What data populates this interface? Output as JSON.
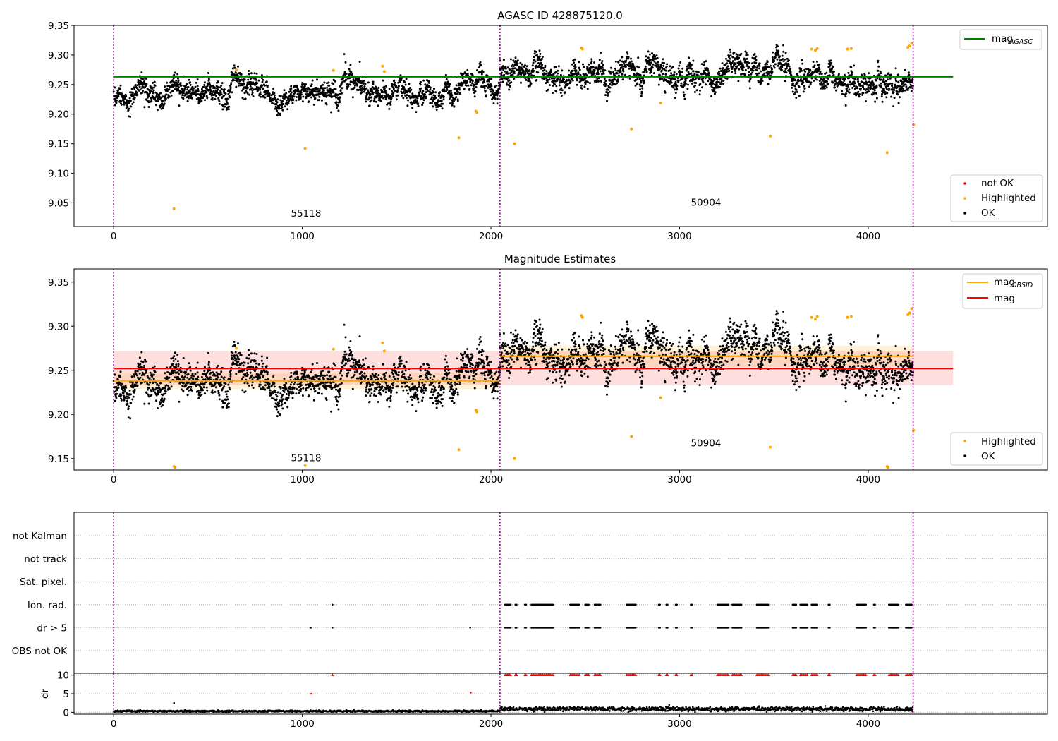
{
  "chart_data": [
    {
      "type": "scatter",
      "title": "AGASC ID 428875120.0",
      "xlabel": "",
      "ylabel": "",
      "xlim": [
        -210,
        4950
      ],
      "ylim": [
        9.01,
        9.35
      ],
      "x_ticks": [
        0,
        1000,
        2000,
        3000,
        4000
      ],
      "y_ticks": [
        9.05,
        9.1,
        9.15,
        9.2,
        9.25,
        9.3,
        9.35
      ],
      "obsid_boundaries": [
        0,
        2048,
        4238
      ],
      "obsid_labels": [
        {
          "text": "55118",
          "x": 1020,
          "y": 9.027
        },
        {
          "text": "50904",
          "x": 3140,
          "y": 9.045
        }
      ],
      "reference_lines": [
        {
          "name": "mag_AGASC",
          "label_main": "mag",
          "label_sub": "AGASC",
          "y": 9.263,
          "x_range": [
            0,
            4450
          ],
          "color": "#008000"
        }
      ],
      "ok_model": {
        "segments": [
          {
            "x_range": [
              0,
              2048
            ],
            "mean": 9.239,
            "wiggle": 0.011,
            "noise": 0.008,
            "n": 1800
          },
          {
            "x_range": [
              2048,
              4238
            ],
            "mean": 9.266,
            "wiggle": 0.013,
            "noise": 0.009,
            "n": 1950
          }
        ]
      },
      "highlighted_points": [
        [
          320,
          9.04
        ],
        [
          650,
          9.275
        ],
        [
          1015,
          9.142
        ],
        [
          1165,
          9.274
        ],
        [
          1425,
          9.281
        ],
        [
          1435,
          9.272
        ],
        [
          1830,
          9.16
        ],
        [
          1920,
          9.205
        ],
        [
          1925,
          9.203
        ],
        [
          2125,
          9.15
        ],
        [
          2480,
          9.312
        ],
        [
          2485,
          9.31
        ],
        [
          2745,
          9.175
        ],
        [
          2900,
          9.219
        ],
        [
          3480,
          9.163
        ],
        [
          3700,
          9.31
        ],
        [
          3720,
          9.308
        ],
        [
          3730,
          9.311
        ],
        [
          3890,
          9.31
        ],
        [
          3910,
          9.311
        ],
        [
          4100,
          9.135
        ],
        [
          4210,
          9.313
        ],
        [
          4220,
          9.315
        ],
        [
          4230,
          9.32
        ],
        [
          4240,
          9.182
        ]
      ],
      "legend": {
        "reference": {
          "position": "top-right"
        },
        "points": {
          "position": "bottom-right",
          "entries": [
            {
              "label": "not OK",
              "color": "#ff0000"
            },
            {
              "label": "Highlighted",
              "color": "#ffa500"
            },
            {
              "label": "OK",
              "color": "#000000"
            }
          ]
        }
      },
      "grid": false
    },
    {
      "type": "scatter",
      "title": "Magnitude Estimates",
      "xlabel": "",
      "ylabel": "",
      "xlim": [
        -210,
        4950
      ],
      "ylim": [
        9.137,
        9.365
      ],
      "x_ticks": [
        0,
        1000,
        2000,
        3000,
        4000
      ],
      "y_ticks": [
        9.15,
        9.2,
        9.25,
        9.3,
        9.35
      ],
      "obsid_boundaries": [
        0,
        2048,
        4238
      ],
      "obsid_labels": [
        {
          "text": "55118",
          "x": 1020,
          "y": 9.147
        },
        {
          "text": "50904",
          "x": 3140,
          "y": 9.164
        }
      ],
      "reference_lines": [
        {
          "name": "mag_OBSID_1",
          "label_main": "mag",
          "label_sub": "OBSID",
          "y": 9.238,
          "x_range": [
            0,
            2048
          ],
          "color": "#ffa500"
        },
        {
          "name": "mag_OBSID_2",
          "label_main": "mag",
          "label_sub": "OBSID",
          "y": 9.266,
          "x_range": [
            2048,
            4238
          ],
          "color": "#ffa500"
        },
        {
          "name": "mag",
          "label_main": "mag",
          "label_sub": "",
          "y": 9.252,
          "x_range": [
            0,
            4450
          ],
          "color": "#ff0000"
        }
      ],
      "bands": [
        {
          "y_range": [
            9.233,
            9.272
          ],
          "x_range": [
            0,
            4450
          ],
          "color": "#ff0000",
          "opacity": 0.13
        },
        {
          "y_range": [
            9.229,
            9.247
          ],
          "x_range": [
            0,
            2048
          ],
          "color": "#ffa500",
          "opacity": 0.15
        },
        {
          "y_range": [
            9.254,
            9.278
          ],
          "x_range": [
            2048,
            4238
          ],
          "color": "#ffa500",
          "opacity": 0.15
        }
      ],
      "ok_model": {
        "segments": [
          {
            "x_range": [
              0,
              2048
            ],
            "mean": 9.239,
            "wiggle": 0.011,
            "noise": 0.008,
            "n": 1800
          },
          {
            "x_range": [
              2048,
              4238
            ],
            "mean": 9.266,
            "wiggle": 0.013,
            "noise": 0.009,
            "n": 1950
          }
        ]
      },
      "highlighted_points": [
        [
          320,
          9.141
        ],
        [
          325,
          9.14
        ],
        [
          650,
          9.275
        ],
        [
          1015,
          9.142
        ],
        [
          1165,
          9.274
        ],
        [
          1425,
          9.281
        ],
        [
          1435,
          9.272
        ],
        [
          1830,
          9.16
        ],
        [
          1920,
          9.205
        ],
        [
          1925,
          9.203
        ],
        [
          2125,
          9.15
        ],
        [
          2480,
          9.312
        ],
        [
          2485,
          9.31
        ],
        [
          2745,
          9.175
        ],
        [
          2900,
          9.219
        ],
        [
          3480,
          9.163
        ],
        [
          3700,
          9.31
        ],
        [
          3720,
          9.308
        ],
        [
          3730,
          9.311
        ],
        [
          3890,
          9.31
        ],
        [
          3910,
          9.311
        ],
        [
          4100,
          9.141
        ],
        [
          4105,
          9.14
        ],
        [
          4210,
          9.313
        ],
        [
          4220,
          9.315
        ],
        [
          4230,
          9.32
        ],
        [
          4240,
          9.182
        ]
      ],
      "legend": {
        "reference": {
          "position": "top-right"
        },
        "points": {
          "position": "bottom-right",
          "entries": [
            {
              "label": "Highlighted",
              "color": "#ffa500"
            },
            {
              "label": "OK",
              "color": "#000000"
            }
          ]
        }
      },
      "grid": false
    },
    {
      "type": "scatter",
      "title": "",
      "xlabel": "",
      "ylabel": "",
      "xlim": [
        -210,
        4950
      ],
      "flag_rows": [
        "not Kalman",
        "not track",
        "Sat. pixel.",
        "Ion. rad.",
        "dr > 5",
        "OBS not OK"
      ],
      "obsid_boundaries": [
        0,
        2048,
        4238
      ],
      "flag_points": {
        "Ion. rad.": [
          [
            1160,
            1163
          ],
          [
            2075,
            2110
          ],
          [
            2130,
            2140
          ],
          [
            2180,
            2190
          ],
          [
            2215,
            2330
          ],
          [
            2420,
            2470
          ],
          [
            2500,
            2520
          ],
          [
            2550,
            2580
          ],
          [
            2720,
            2770
          ],
          [
            2890,
            2900
          ],
          [
            2930,
            2940
          ],
          [
            2980,
            2990
          ],
          [
            3060,
            3070
          ],
          [
            3200,
            3260
          ],
          [
            3280,
            3330
          ],
          [
            3410,
            3470
          ],
          [
            3600,
            3620
          ],
          [
            3640,
            3680
          ],
          [
            3700,
            3730
          ],
          [
            3790,
            3800
          ],
          [
            3940,
            3990
          ],
          [
            4030,
            4040
          ],
          [
            4110,
            4160
          ],
          [
            4200,
            4230
          ]
        ],
        "dr > 5": [
          [
            1045,
            1048
          ],
          [
            1160,
            1163
          ],
          [
            1890,
            1893
          ],
          [
            2075,
            2110
          ],
          [
            2130,
            2140
          ],
          [
            2180,
            2190
          ],
          [
            2215,
            2330
          ],
          [
            2420,
            2470
          ],
          [
            2500,
            2520
          ],
          [
            2550,
            2580
          ],
          [
            2720,
            2770
          ],
          [
            2890,
            2900
          ],
          [
            2930,
            2940
          ],
          [
            2980,
            2990
          ],
          [
            3060,
            3070
          ],
          [
            3200,
            3260
          ],
          [
            3280,
            3330
          ],
          [
            3410,
            3470
          ],
          [
            3600,
            3620
          ],
          [
            3640,
            3680
          ],
          [
            3700,
            3730
          ],
          [
            3790,
            3800
          ],
          [
            3940,
            3990
          ],
          [
            4030,
            4040
          ],
          [
            4110,
            4160
          ],
          [
            4200,
            4230
          ]
        ]
      }
    },
    {
      "type": "scatter",
      "title": "",
      "xlabel": "",
      "ylabel": "dr",
      "xlim": [
        -210,
        4950
      ],
      "ylim": [
        -0.5,
        10.5
      ],
      "x_ticks": [
        0,
        1000,
        2000,
        3000,
        4000
      ],
      "y_ticks": [
        0,
        5,
        10
      ],
      "obsid_boundaries": [
        0,
        2048,
        4238
      ],
      "baseline_segments": [
        {
          "x_range": [
            0,
            2048
          ],
          "mean": 0.3,
          "spread": 0.2
        },
        {
          "x_range": [
            2048,
            4238
          ],
          "mean": 0.9,
          "spread": 0.45
        }
      ],
      "outliers_black": [
        [
          320,
          2.5
        ],
        [
          2945,
          2.0
        ]
      ],
      "outliers_red": [
        [
          1048,
          5.0
        ],
        [
          1893,
          5.3
        ]
      ],
      "clipped_red_ranges": [
        [
          1160,
          1163
        ],
        [
          2075,
          2110
        ],
        [
          2130,
          2140
        ],
        [
          2180,
          2190
        ],
        [
          2215,
          2330
        ],
        [
          2420,
          2470
        ],
        [
          2500,
          2520
        ],
        [
          2550,
          2580
        ],
        [
          2720,
          2770
        ],
        [
          2890,
          2900
        ],
        [
          2930,
          2940
        ],
        [
          2980,
          2990
        ],
        [
          3060,
          3070
        ],
        [
          3200,
          3260
        ],
        [
          3280,
          3330
        ],
        [
          3410,
          3470
        ],
        [
          3600,
          3620
        ],
        [
          3640,
          3680
        ],
        [
          3700,
          3730
        ],
        [
          3790,
          3800
        ],
        [
          3940,
          3990
        ],
        [
          4030,
          4040
        ],
        [
          4110,
          4160
        ],
        [
          4200,
          4230
        ]
      ],
      "grid": true
    }
  ],
  "colors": {
    "ok": "#000000",
    "highlighted": "#ffa500",
    "not_ok": "#ff0000",
    "boundary": "#800080",
    "grid": "#b0b0b0"
  }
}
